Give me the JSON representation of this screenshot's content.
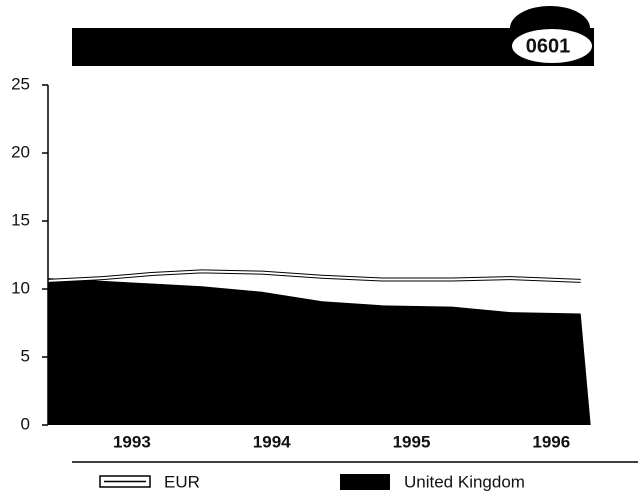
{
  "chart_data": {
    "type": "area",
    "badge": "0601",
    "x": [
      1992.9,
      1993.29,
      1993.64,
      1994.0,
      1994.43,
      1994.86,
      1995.29,
      1995.79,
      1996.21,
      1996.71
    ],
    "series": [
      {
        "name": "United Kingdom",
        "color": "#000000",
        "kind": "area",
        "values": [
          10.8,
          10.6,
          10.4,
          10.2,
          9.8,
          9.1,
          8.8,
          8.7,
          8.3,
          8.2
        ]
      },
      {
        "name": "EUR",
        "color": "#ffffff",
        "kind": "line",
        "values": [
          10.6,
          10.8,
          11.1,
          11.3,
          11.2,
          10.9,
          10.7,
          10.7,
          10.8,
          10.6
        ]
      }
    ],
    "xlim": [
      1992.9,
      1997.12
    ],
    "xticks": [
      {
        "value": 1993.5,
        "label": "1993"
      },
      {
        "value": 1994.5,
        "label": "1994"
      },
      {
        "value": 1995.5,
        "label": "1995"
      },
      {
        "value": 1996.5,
        "label": "1996"
      }
    ],
    "ylim": [
      0,
      25
    ],
    "yticks": [
      0,
      5,
      10,
      15,
      20,
      25
    ]
  }
}
